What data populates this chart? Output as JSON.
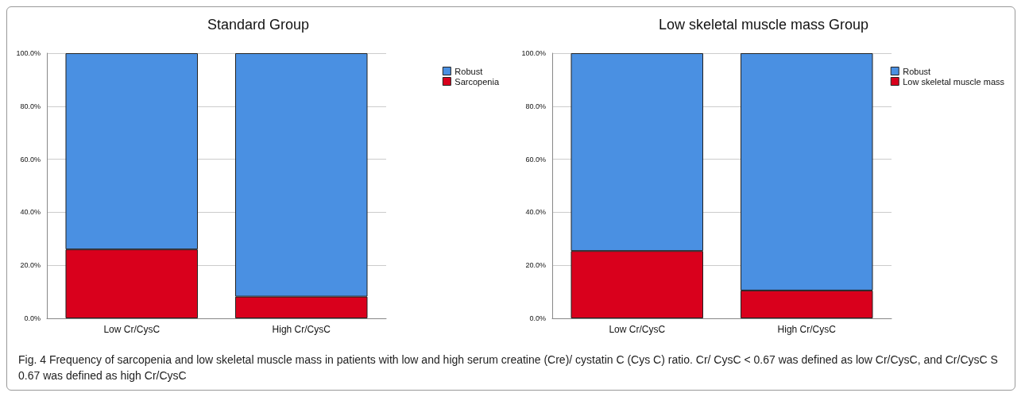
{
  "chart_data": [
    {
      "type": "bar",
      "title": "Standard Group",
      "categories": [
        "Low Cr/CysC",
        "High Cr/CysC"
      ],
      "stacked": true,
      "legend": "top right",
      "grid": "y",
      "series": [
        {
          "name": "Sarcopenia",
          "color": "#d9001c",
          "values": [
            26.0,
            8.2
          ]
        },
        {
          "name": "Robust",
          "color": "#4a90e2",
          "values": [
            74.0,
            91.8
          ]
        }
      ],
      "ylim": [
        0,
        100
      ],
      "yticks": [
        {
          "value": 0,
          "label": "0.0%"
        },
        {
          "value": 20,
          "label": "20.0%"
        },
        {
          "value": 40,
          "label": "40.0%"
        },
        {
          "value": 60,
          "label": "60.0%"
        },
        {
          "value": 80,
          "label": "80.0%"
        },
        {
          "value": 100,
          "label": "100.0%"
        }
      ],
      "annotations": [
        "Fig. 4  Frequency of sarcopenia and low skeletal muscle mass in patients with low and high serum creatine (Cre)/ cystatin C (Cys C) ratio. Cr/ CysC < 0.67 was defined as low Cr/CysC, and Cr/CysC S 0.67 was defined as high Cr/CysC"
      ]
    },
    {
      "type": "bar",
      "title": "Low skeletal muscle mass Group",
      "categories": [
        "Low Cr/CysC",
        "High Cr/CysC"
      ],
      "stacked": true,
      "legend": "top right",
      "grid": "y",
      "series": [
        {
          "name": "Low skeletal muscle mass",
          "color": "#d9001c",
          "values": [
            25.4,
            10.5
          ]
        },
        {
          "name": "Robust",
          "color": "#4a90e2",
          "values": [
            74.6,
            89.5
          ]
        }
      ],
      "ylim": [
        0,
        100
      ],
      "yticks": [
        {
          "value": 0,
          "label": "0.0%"
        },
        {
          "value": 20,
          "label": "20.0%"
        },
        {
          "value": 40,
          "label": "40.0%"
        },
        {
          "value": 60,
          "label": "60.0%"
        },
        {
          "value": 80,
          "label": "80.0%"
        },
        {
          "value": 100,
          "label": "100.0%"
        }
      ]
    }
  ]
}
